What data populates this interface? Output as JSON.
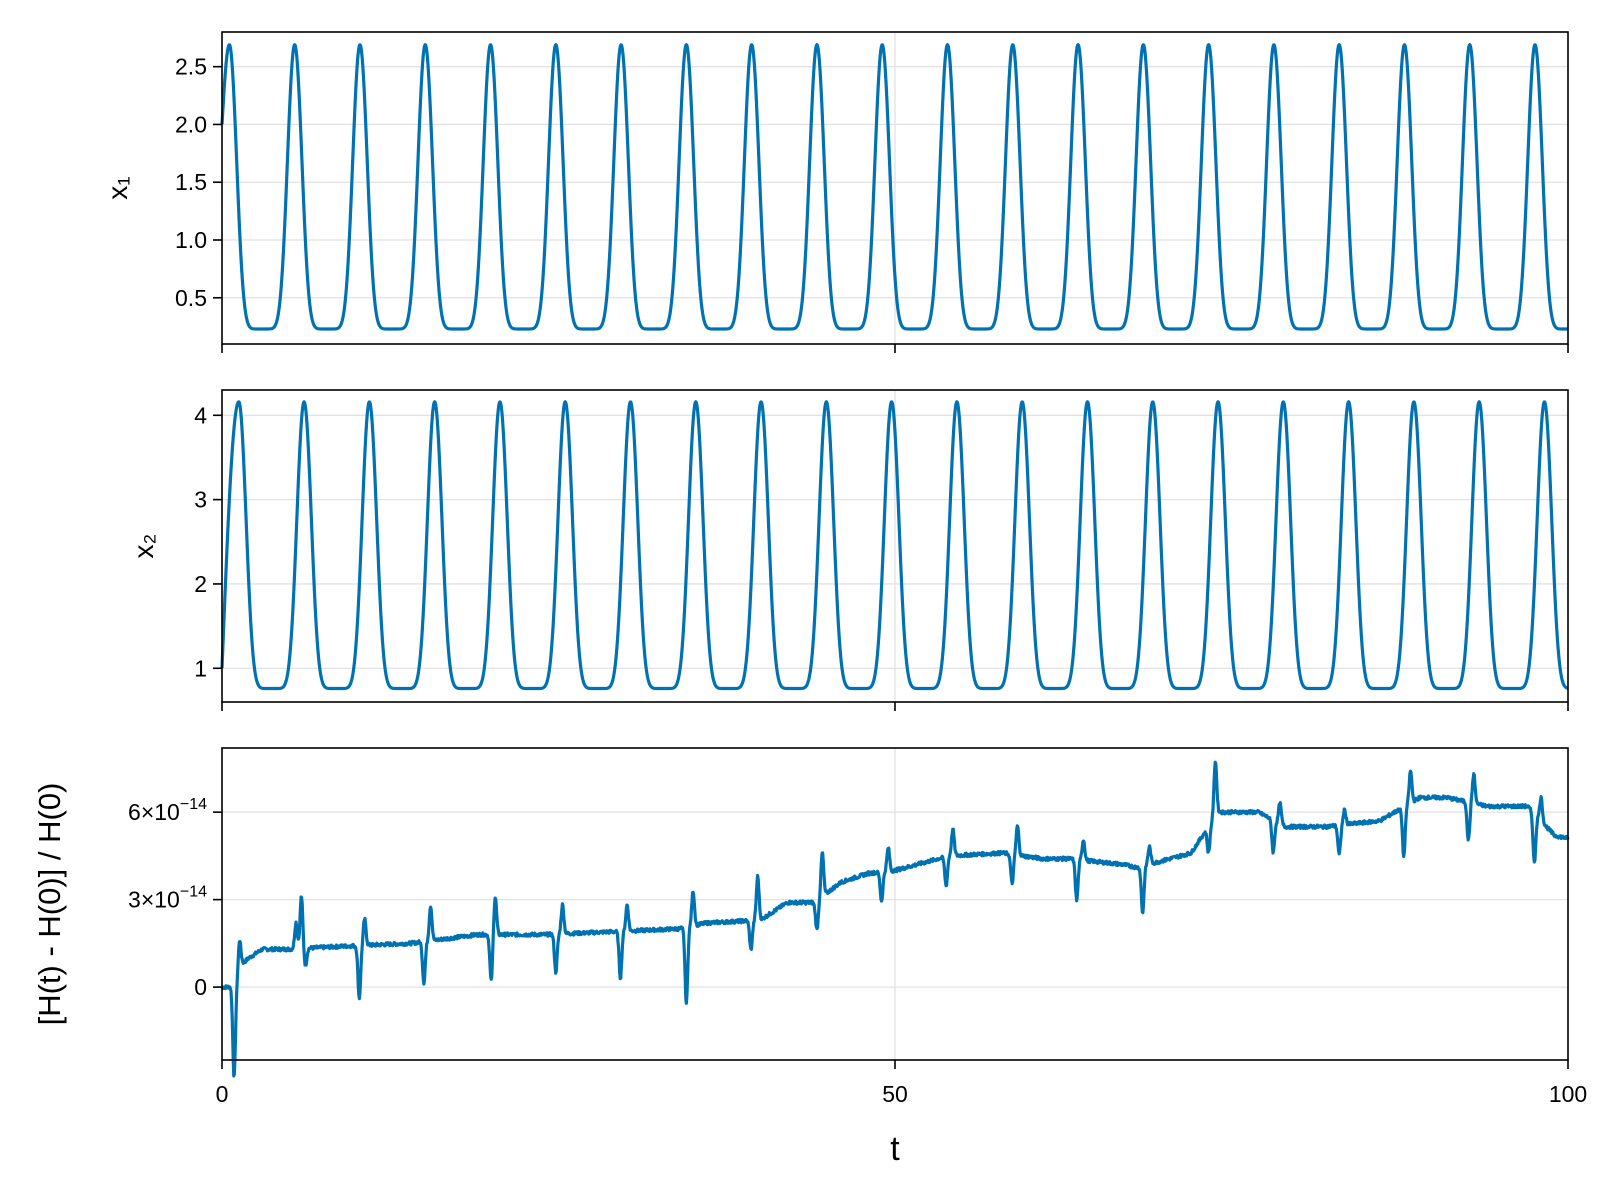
{
  "colors": {
    "series": "#0072b2"
  },
  "chart_data": [
    {
      "type": "line",
      "ylabel": "x₁",
      "xlim": [
        0,
        100
      ],
      "ylim": [
        0.1,
        2.8
      ],
      "xticks": [
        0,
        50,
        100
      ],
      "yticks": [
        0.5,
        1.0,
        1.5,
        2.0,
        2.5
      ],
      "ytick_labels": [
        "0.5",
        "1.0",
        "1.5",
        "2.0",
        "2.5"
      ],
      "show_x_tick_labels": false,
      "grid": true,
      "series": [
        {
          "kind": "periodic",
          "start": 2.0,
          "period": 4.85,
          "first_peak": 0.55,
          "max": 2.69,
          "min": 0.23,
          "end": 0.35
        }
      ]
    },
    {
      "type": "line",
      "ylabel": "x₂",
      "xlim": [
        0,
        100
      ],
      "ylim": [
        0.6,
        4.3
      ],
      "xticks": [
        0,
        50,
        100
      ],
      "yticks": [
        1,
        2,
        3,
        4
      ],
      "ytick_labels": [
        "1",
        "2",
        "3",
        "4"
      ],
      "show_x_tick_labels": false,
      "grid": true,
      "series": [
        {
          "kind": "periodic",
          "start": 1.0,
          "period": 4.85,
          "first_peak": 1.25,
          "max": 4.16,
          "min": 0.76,
          "end": 1.12
        }
      ]
    },
    {
      "type": "line",
      "ylabel": "[H(t) - H(0)] / H(0)",
      "xlabel": "t",
      "xlim": [
        0,
        100
      ],
      "ylim": [
        -2.5e-14,
        8.2e-14
      ],
      "xticks": [
        0,
        50,
        100
      ],
      "xtick_labels": [
        "0",
        "50",
        "100"
      ],
      "yticks": [
        0,
        3e-14,
        6e-14
      ],
      "ytick_labels": [
        {
          "mantissa": "0",
          "exponent": ""
        },
        {
          "mantissa": "3×10",
          "exponent": "−14"
        },
        {
          "mantissa": "6×10",
          "exponent": "−14"
        }
      ],
      "grid": true,
      "series": [
        {
          "kind": "drift",
          "x": [
            0,
            0.5,
            1.2,
            1.5,
            2,
            3,
            5,
            9,
            14,
            19,
            24,
            29,
            34,
            36,
            40,
            42,
            44,
            46,
            48,
            50,
            54,
            58,
            61,
            63,
            67,
            68,
            72,
            74,
            77,
            79,
            82,
            86,
            89,
            91,
            94,
            97,
            99,
            100
          ],
          "y": [
            0,
            0,
            2e-15,
            8e-15,
            1e-14,
            1.3e-14,
            1.3e-14,
            1.4e-14,
            1.5e-14,
            1.8e-14,
            1.8e-14,
            1.9e-14,
            2e-14,
            2.2e-14,
            2.3e-14,
            2.9e-14,
            2.9e-14,
            3.6e-14,
            3.9e-14,
            4e-14,
            4.5e-14,
            4.6e-14,
            4.4e-14,
            4.4e-14,
            4.2e-14,
            4.1e-14,
            4.6e-14,
            6e-14,
            6e-14,
            5.5e-14,
            5.5e-14,
            5.7e-14,
            6.5e-14,
            6.5e-14,
            6.2e-14,
            6.2e-14,
            5.2e-14,
            5.1e-14
          ],
          "spikes": [
            {
              "t": 0.9,
              "dy": -3.2e-14
            },
            {
              "t": 1.3,
              "dy": 1.2e-14
            },
            {
              "t": 5.5,
              "dy": 9e-15
            },
            {
              "t": 5.9,
              "dy": 1.8e-14
            },
            {
              "t": 6.2,
              "dy": -6e-15
            },
            {
              "t": 10.2,
              "dy": -1.8e-14
            },
            {
              "t": 10.6,
              "dy": 9e-15
            },
            {
              "t": 15.0,
              "dy": -1.4e-14
            },
            {
              "t": 15.5,
              "dy": 1.2e-14
            },
            {
              "t": 20.0,
              "dy": -1.6e-14
            },
            {
              "t": 20.3,
              "dy": 1.3e-14
            },
            {
              "t": 24.8,
              "dy": -1.3e-14
            },
            {
              "t": 25.3,
              "dy": 1e-14
            },
            {
              "t": 29.6,
              "dy": -1.6e-14
            },
            {
              "t": 30.1,
              "dy": 9e-15
            },
            {
              "t": 34.5,
              "dy": -2.6e-14
            },
            {
              "t": 35.0,
              "dy": 1.2e-14
            },
            {
              "t": 39.3,
              "dy": -1e-14
            },
            {
              "t": 39.8,
              "dy": 1.5e-14
            },
            {
              "t": 44.2,
              "dy": -1e-14
            },
            {
              "t": 44.6,
              "dy": 1.5e-14
            },
            {
              "t": 49.0,
              "dy": -1e-14
            },
            {
              "t": 49.5,
              "dy": 8e-15
            },
            {
              "t": 53.8,
              "dy": -1e-14
            },
            {
              "t": 54.3,
              "dy": 9e-15
            },
            {
              "t": 58.7,
              "dy": -1e-14
            },
            {
              "t": 59.1,
              "dy": 1e-14
            },
            {
              "t": 63.5,
              "dy": -1.4e-14
            },
            {
              "t": 64.0,
              "dy": 7e-15
            },
            {
              "t": 68.4,
              "dy": -1.6e-14
            },
            {
              "t": 68.9,
              "dy": 6e-15
            },
            {
              "t": 73.3,
              "dy": -9e-15
            },
            {
              "t": 73.8,
              "dy": 1.9e-14
            },
            {
              "t": 78.1,
              "dy": -1.1e-14
            },
            {
              "t": 78.6,
              "dy": 7e-15
            },
            {
              "t": 83.0,
              "dy": -1e-14
            },
            {
              "t": 83.4,
              "dy": 5e-15
            },
            {
              "t": 87.8,
              "dy": -1.7e-14
            },
            {
              "t": 88.3,
              "dy": 1.1e-14
            },
            {
              "t": 92.6,
              "dy": -1.3e-14
            },
            {
              "t": 93.0,
              "dy": 1e-14
            },
            {
              "t": 97.5,
              "dy": -1.7e-14
            },
            {
              "t": 98.0,
              "dy": 8e-15
            }
          ]
        }
      ]
    }
  ]
}
